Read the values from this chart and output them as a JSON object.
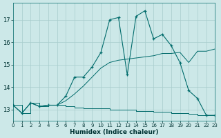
{
  "xlabel": "Humidex (Indice chaleur)",
  "background_color": "#cce8e8",
  "line_color": "#006b6b",
  "grid_color": "#a8cccc",
  "xlim": [
    0,
    23
  ],
  "ylim": [
    12.5,
    17.75
  ],
  "yticks": [
    13,
    14,
    15,
    16,
    17
  ],
  "xticks": [
    0,
    1,
    2,
    3,
    4,
    5,
    6,
    7,
    8,
    9,
    10,
    11,
    12,
    13,
    14,
    15,
    16,
    17,
    18,
    19,
    20,
    21,
    22,
    23
  ],
  "curve_x": [
    0,
    1,
    2,
    3,
    4,
    5,
    6,
    7,
    8,
    9,
    10,
    11,
    12,
    13,
    14,
    15,
    16,
    17,
    18,
    19,
    20,
    21,
    22,
    23
  ],
  "curve_y": [
    13.2,
    12.85,
    13.3,
    13.15,
    13.2,
    13.2,
    13.6,
    14.45,
    14.45,
    14.9,
    15.55,
    17.0,
    17.1,
    14.55,
    17.15,
    17.4,
    16.15,
    16.35,
    15.85,
    15.1,
    13.85,
    13.5,
    12.75,
    12.75
  ],
  "diag_x": [
    0,
    1,
    2,
    3,
    4,
    5,
    6,
    7,
    8,
    9,
    10,
    11,
    12,
    13,
    14,
    15,
    16,
    17,
    18,
    19,
    20,
    21,
    22,
    23
  ],
  "diag_y": [
    13.2,
    12.85,
    13.3,
    13.15,
    13.2,
    13.2,
    13.4,
    13.7,
    14.05,
    14.45,
    14.85,
    15.1,
    15.2,
    15.25,
    15.3,
    15.35,
    15.4,
    15.5,
    15.5,
    15.55,
    15.1,
    15.6,
    15.6,
    15.7
  ],
  "step_x": [
    0,
    1,
    2,
    3,
    4,
    5,
    6,
    7,
    8,
    9,
    10,
    11,
    12,
    13,
    14,
    15,
    16,
    17,
    18,
    19,
    20,
    21,
    22,
    23
  ],
  "step_y": [
    13.2,
    12.85,
    13.3,
    13.15,
    13.2,
    13.2,
    13.15,
    13.1,
    13.05,
    13.05,
    13.05,
    13.0,
    13.0,
    13.0,
    12.95,
    12.95,
    12.9,
    12.9,
    12.85,
    12.85,
    12.8,
    12.75,
    12.75,
    12.75
  ],
  "figsize": [
    3.2,
    2.0
  ],
  "dpi": 100
}
